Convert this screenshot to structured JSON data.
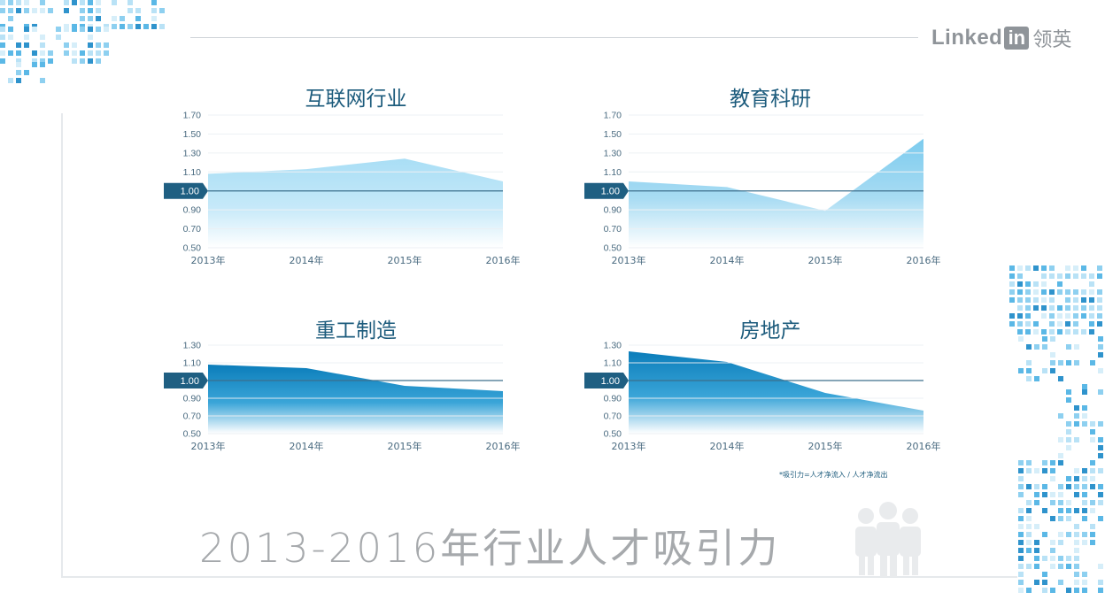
{
  "brand": {
    "linked": "Linked",
    "in": "in",
    "cn": "领英"
  },
  "title": "2013-2016年行业人才吸引力",
  "footnote": "*吸引力=人才净流入 / 人才净流出",
  "colors": {
    "light_area": "#8fd3f0",
    "mid_area": "#2fa3d6",
    "dark_area": "#0d7fb7",
    "baseline": "#1f5f82"
  },
  "chart_data": [
    {
      "type": "area",
      "title": "互联网行业",
      "x": [
        "2013年",
        "2014年",
        "2015年",
        "2016年"
      ],
      "y_ticks": [
        "1.70",
        "1.50",
        "1.30",
        "1.10",
        "1.00",
        "0.90",
        "0.70",
        "0.50"
      ],
      "y_tick_values": [
        1.7,
        1.5,
        1.3,
        1.1,
        1.0,
        0.9,
        0.7,
        0.5
      ],
      "series": [
        {
          "values": [
            1.09,
            1.13,
            1.24,
            1.05
          ]
        }
      ],
      "baseline": 1.0,
      "baseline_label": "1.00",
      "ylim": [
        0.5,
        1.7
      ],
      "grid": true
    },
    {
      "type": "area",
      "title": "教育科研",
      "x": [
        "2013年",
        "2014年",
        "2015年",
        "2016年"
      ],
      "y_ticks": [
        "1.70",
        "1.50",
        "1.30",
        "1.10",
        "1.00",
        "0.90",
        "0.70",
        "0.50"
      ],
      "y_tick_values": [
        1.7,
        1.5,
        1.3,
        1.1,
        1.0,
        0.9,
        0.7,
        0.5
      ],
      "series": [
        {
          "values": [
            1.05,
            1.02,
            0.89,
            1.45
          ]
        }
      ],
      "baseline": 1.0,
      "baseline_label": "1.00",
      "ylim": [
        0.5,
        1.7
      ],
      "grid": true
    },
    {
      "type": "area",
      "title": "重工制造",
      "x": [
        "2013年",
        "2014年",
        "2015年",
        "2016年"
      ],
      "y_ticks": [
        "1.30",
        "1.10",
        "1.00",
        "0.90",
        "0.70",
        "0.50"
      ],
      "y_tick_values": [
        1.3,
        1.1,
        1.0,
        0.9,
        0.7,
        0.5
      ],
      "series": [
        {
          "values": [
            1.09,
            1.07,
            0.97,
            0.94
          ]
        }
      ],
      "baseline": 1.0,
      "baseline_label": "1.00",
      "ylim": [
        0.5,
        1.3
      ],
      "grid": true
    },
    {
      "type": "area",
      "title": "房地产",
      "x": [
        "2013年",
        "2014年",
        "2015年",
        "2016年"
      ],
      "y_ticks": [
        "1.30",
        "1.10",
        "1.00",
        "0.90",
        "0.70",
        "0.50"
      ],
      "y_tick_values": [
        1.3,
        1.1,
        1.0,
        0.9,
        0.7,
        0.5
      ],
      "series": [
        {
          "values": [
            1.23,
            1.11,
            0.93,
            0.76
          ]
        }
      ],
      "baseline": 1.0,
      "baseline_label": "1.00",
      "ylim": [
        0.5,
        1.3
      ],
      "grid": true
    }
  ]
}
